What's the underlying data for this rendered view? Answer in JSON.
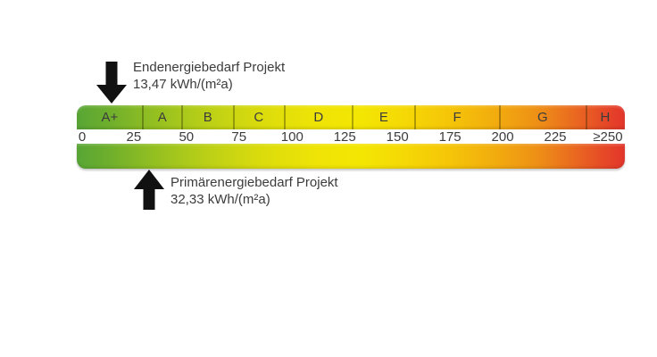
{
  "annotations": {
    "top": {
      "title": "Endenergiebedarf Projekt",
      "value": "13,47 kWh/(m²a)",
      "arrow_icon": "down-arrow-icon"
    },
    "bottom": {
      "title": "Primärenergiebedarf Projekt",
      "value": "32,33 kWh/(m²a)",
      "arrow_icon": "up-arrow-icon"
    }
  },
  "scale": {
    "classes": [
      {
        "label": "A+",
        "pct": 6.0
      },
      {
        "label": "A",
        "pct": 15.6
      },
      {
        "label": "B",
        "pct": 23.9
      },
      {
        "label": "C",
        "pct": 33.2
      },
      {
        "label": "D",
        "pct": 44.1
      },
      {
        "label": "E",
        "pct": 56.0
      },
      {
        "label": "F",
        "pct": 69.4
      },
      {
        "label": "G",
        "pct": 85.0
      },
      {
        "label": "H",
        "pct": 96.4
      }
    ],
    "dividers_pct": [
      12.05,
      19.2,
      28.7,
      37.9,
      50.3,
      61.7,
      77.2,
      93.0
    ],
    "ticks": [
      {
        "label": "0",
        "pct": 0.8,
        "align": "left"
      },
      {
        "label": "25",
        "pct": 10.4
      },
      {
        "label": "50",
        "pct": 20.0
      },
      {
        "label": "75",
        "pct": 29.6
      },
      {
        "label": "100",
        "pct": 39.3
      },
      {
        "label": "125",
        "pct": 48.9
      },
      {
        "label": "150",
        "pct": 58.5
      },
      {
        "label": "175",
        "pct": 68.1
      },
      {
        "label": "200",
        "pct": 77.7
      },
      {
        "label": "225",
        "pct": 87.3
      },
      {
        "label": "≥250",
        "pct": 96.9
      }
    ],
    "gradient": [
      {
        "color": "#58A636",
        "pct": 0
      },
      {
        "color": "#6FAF2C",
        "pct": 6
      },
      {
        "color": "#93BF21",
        "pct": 14
      },
      {
        "color": "#BCD016",
        "pct": 24
      },
      {
        "color": "#DCDC0C",
        "pct": 34
      },
      {
        "color": "#EFE406",
        "pct": 44
      },
      {
        "color": "#F4E603",
        "pct": 52
      },
      {
        "color": "#F5D805",
        "pct": 60
      },
      {
        "color": "#F5C508",
        "pct": 68
      },
      {
        "color": "#F2AD0E",
        "pct": 76
      },
      {
        "color": "#EE9016",
        "pct": 84
      },
      {
        "color": "#EA6E1F",
        "pct": 90
      },
      {
        "color": "#E64A27",
        "pct": 96
      },
      {
        "color": "#E3352B",
        "pct": 100
      }
    ]
  },
  "colors": {
    "arrow": "#111111",
    "text": "#3c3c3c",
    "divider": "rgba(40,40,0,0.35)"
  },
  "chart_data": {
    "type": "gauge",
    "title": "",
    "orientation": "horizontal",
    "axis": {
      "min": 0,
      "max": 250,
      "tick_step": 25,
      "tick_labels": [
        "0",
        "25",
        "50",
        "75",
        "100",
        "125",
        "150",
        "175",
        "200",
        "225",
        "≥250"
      ]
    },
    "efficiency_classes": [
      "A+",
      "A",
      "B",
      "C",
      "D",
      "E",
      "F",
      "G",
      "H"
    ],
    "color_scale": "green-to-red gradient",
    "markers": [
      {
        "name": "Endenergiebedarf Projekt",
        "value": 13.47,
        "unit": "kWh/(m²a)",
        "side": "top",
        "arrow_direction": "down"
      },
      {
        "name": "Primärenergiebedarf Projekt",
        "value": 32.33,
        "unit": "kWh/(m²a)",
        "side": "bottom",
        "arrow_direction": "up"
      }
    ]
  }
}
